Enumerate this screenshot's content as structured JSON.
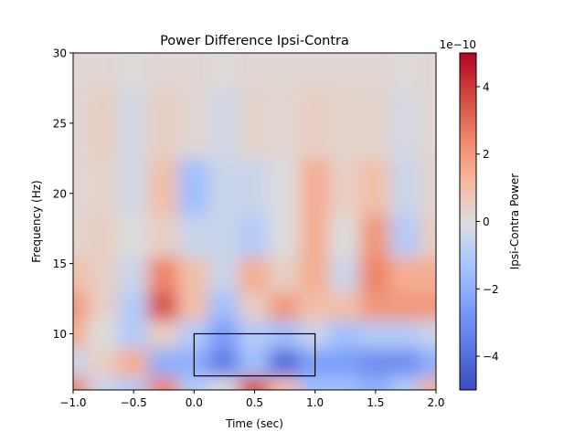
{
  "chart_data": {
    "type": "heatmap",
    "title": "Power Difference Ipsi-Contra",
    "xlabel": "Time (sec)",
    "ylabel": "Frequency (Hz)",
    "xlim": [
      -1.0,
      2.0
    ],
    "ylim": [
      6,
      30
    ],
    "xticks": [
      "−1.0",
      "−0.5",
      "0.0",
      "0.5",
      "1.0",
      "1.5",
      "2.0"
    ],
    "xtick_values": [
      -1.0,
      -0.5,
      0.0,
      0.5,
      1.0,
      1.5,
      2.0
    ],
    "yticks": [
      "10",
      "15",
      "20",
      "25",
      "30"
    ],
    "ytick_values": [
      10,
      15,
      20,
      25,
      30
    ],
    "colormap": "coolwarm",
    "colorbar": {
      "label": "Ipsi-Contra Power",
      "offset_text": "1e−10",
      "range": [
        -5,
        5
      ],
      "ticks": [
        "−4",
        "−2",
        "0",
        "2",
        "4"
      ],
      "tick_values": [
        -4,
        -2,
        0,
        2,
        4
      ]
    },
    "rectangle": {
      "time": [
        0.0,
        1.0
      ],
      "freq": [
        7,
        10
      ],
      "color": "#000000"
    },
    "times": [
      -1.0,
      -0.75,
      -0.5,
      -0.25,
      0.0,
      0.25,
      0.5,
      0.75,
      1.0,
      1.25,
      1.5,
      1.75,
      2.0
    ],
    "freqs": [
      6,
      8,
      10,
      12,
      14,
      17,
      20,
      25,
      30
    ],
    "values_1e-10": [
      [
        2.5,
        -0.5,
        -1,
        2.5,
        -1,
        0,
        3.5,
        1,
        -1.5,
        -1.5,
        -2,
        -1,
        1.5
      ],
      [
        -0.5,
        0.5,
        1.5,
        -2,
        -2,
        -3.5,
        -1.5,
        -4,
        -2.5,
        -2.5,
        -3,
        -3,
        -2
      ],
      [
        1.5,
        0,
        -1,
        0.5,
        -1,
        -2.5,
        -1,
        -1.5,
        -0.5,
        -1.5,
        -1,
        -1,
        -0.5
      ],
      [
        2,
        0.5,
        -1,
        3.5,
        1,
        -1.5,
        0.5,
        2,
        1,
        1,
        2,
        2,
        2
      ],
      [
        1,
        0.5,
        -0.5,
        2.5,
        1,
        -0.5,
        1.5,
        0.5,
        1.5,
        -0.5,
        2.5,
        1.5,
        1.5
      ],
      [
        0.3,
        0.5,
        0,
        0.5,
        -0.5,
        -0.5,
        -1,
        0,
        1.5,
        0,
        2,
        -1,
        0.5
      ],
      [
        0.2,
        0.3,
        -0.3,
        1,
        -1.5,
        -0.5,
        -0.5,
        0,
        1.5,
        0.5,
        1,
        -0.5,
        0.3
      ],
      [
        0.2,
        0.5,
        -0.3,
        0.5,
        0.2,
        -0.3,
        0.3,
        0.2,
        0.5,
        0.3,
        0.3,
        -0.2,
        0.2
      ],
      [
        0.2,
        0.2,
        0.1,
        0.2,
        0.2,
        0.1,
        0.2,
        0.2,
        0.2,
        0.2,
        0.2,
        0.1,
        0.2
      ]
    ]
  }
}
